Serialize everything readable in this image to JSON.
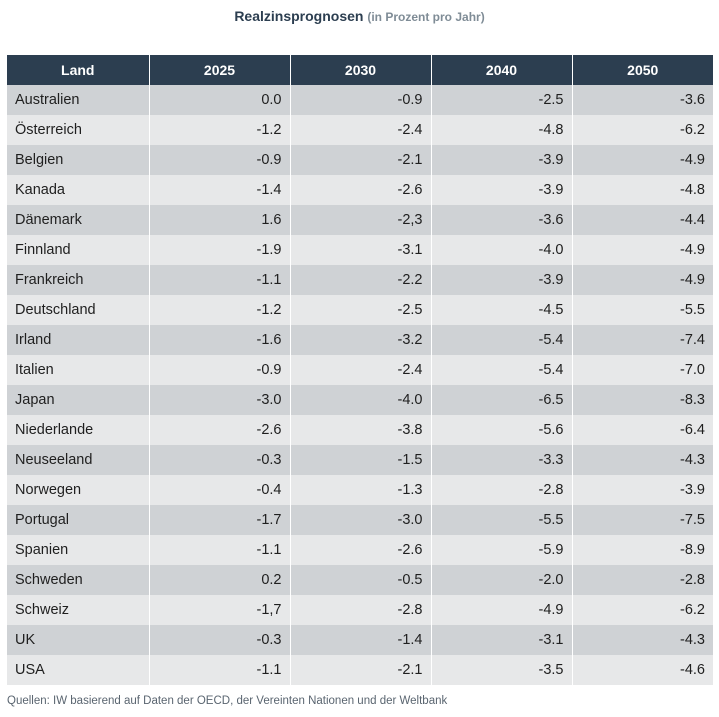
{
  "title": "Realzinsprognosen",
  "subtitle": "(in Prozent pro Jahr)",
  "source": "Quellen: IW basierend auf Daten der OECD, der Vereinten Nationen und der Weltbank",
  "colors": {
    "header": "#2c3e50",
    "row_dark": "#cfd2d5",
    "row_light": "#e7e8e9"
  },
  "chart_data": {
    "type": "table",
    "columns": [
      "Land",
      "2025",
      "2030",
      "2040",
      "2050"
    ],
    "rows": [
      [
        "Australien",
        "0.0",
        "-0.9",
        "-2.5",
        "-3.6"
      ],
      [
        "Österreich",
        "-1.2",
        "-2.4",
        "-4.8",
        "-6.2"
      ],
      [
        "Belgien",
        "-0.9",
        "-2.1",
        "-3.9",
        "-4.9"
      ],
      [
        "Kanada",
        "-1.4",
        "-2.6",
        "-3.9",
        "-4.8"
      ],
      [
        "Dänemark",
        "1.6",
        "-2,3",
        "-3.6",
        "-4.4"
      ],
      [
        "Finnland",
        "-1.9",
        "-3.1",
        "-4.0",
        "-4.9"
      ],
      [
        "Frankreich",
        "-1.1",
        "-2.2",
        "-3.9",
        "-4.9"
      ],
      [
        "Deutschland",
        "-1.2",
        "-2.5",
        "-4.5",
        "-5.5"
      ],
      [
        "Irland",
        "-1.6",
        "-3.2",
        "-5.4",
        "-7.4"
      ],
      [
        "Italien",
        "-0.9",
        "-2.4",
        "-5.4",
        "-7.0"
      ],
      [
        "Japan",
        "-3.0",
        "-4.0",
        "-6.5",
        "-8.3"
      ],
      [
        "Niederlande",
        "-2.6",
        "-3.8",
        "-5.6",
        "-6.4"
      ],
      [
        "Neuseeland",
        "-0.3",
        "-1.5",
        "-3.3",
        "-4.3"
      ],
      [
        "Norwegen",
        "-0.4",
        "-1.3",
        "-2.8",
        "-3.9"
      ],
      [
        "Portugal",
        "-1.7",
        "-3.0",
        "-5.5",
        "-7.5"
      ],
      [
        "Spanien",
        "-1.1",
        "-2.6",
        "-5.9",
        "-8.9"
      ],
      [
        "Schweden",
        "0.2",
        "-0.5",
        "-2.0",
        "-2.8"
      ],
      [
        "Schweiz",
        "-1,7",
        "-2.8",
        "-4.9",
        "-6.2"
      ],
      [
        "UK",
        "-0.3",
        "-1.4",
        "-3.1",
        "-4.3"
      ],
      [
        "USA",
        "-1.1",
        "-2.1",
        "-3.5",
        "-4.6"
      ]
    ]
  }
}
